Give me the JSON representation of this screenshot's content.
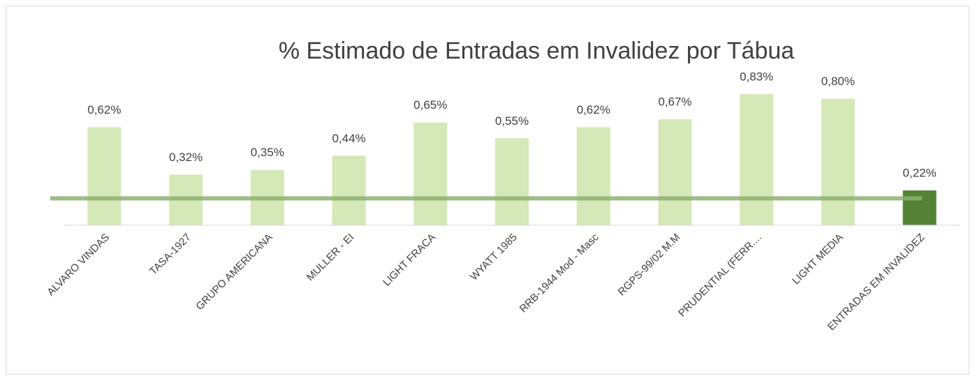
{
  "chart_data": {
    "type": "bar",
    "title": "% Estimado de Entradas em Invalidez por Tábua",
    "categories": [
      "ALVARO VINDAS",
      "TASA-1927",
      "GRUPO AMERICANA",
      "MULLER - EI",
      "LIGHT FRACA",
      "WYATT 1985",
      "RRB-1944 Mod - Masc",
      "RGPS-99/02 M.M",
      "PRUDENTIAL (FERR....",
      "LIGHT MEDIA",
      "ENTRADAS EM INVALIDEZ"
    ],
    "values": [
      0.62,
      0.32,
      0.35,
      0.44,
      0.65,
      0.55,
      0.62,
      0.67,
      0.83,
      0.8,
      0.22
    ],
    "value_labels": [
      "0,62%",
      "0,32%",
      "0,35%",
      "0,44%",
      "0,65%",
      "0,55%",
      "0,62%",
      "0,67%",
      "0,83%",
      "0,80%",
      "0,22%"
    ],
    "colors": [
      "#d5e8b8",
      "#d5e8b8",
      "#d5e8b8",
      "#d5e8b8",
      "#d5e8b8",
      "#d5e8b8",
      "#d5e8b8",
      "#d5e8b8",
      "#d5e8b8",
      "#d5e8b8",
      "#548235"
    ],
    "reference_line": 0.17,
    "reference_color": "#8db070",
    "ylim": [
      0,
      0.9
    ]
  }
}
